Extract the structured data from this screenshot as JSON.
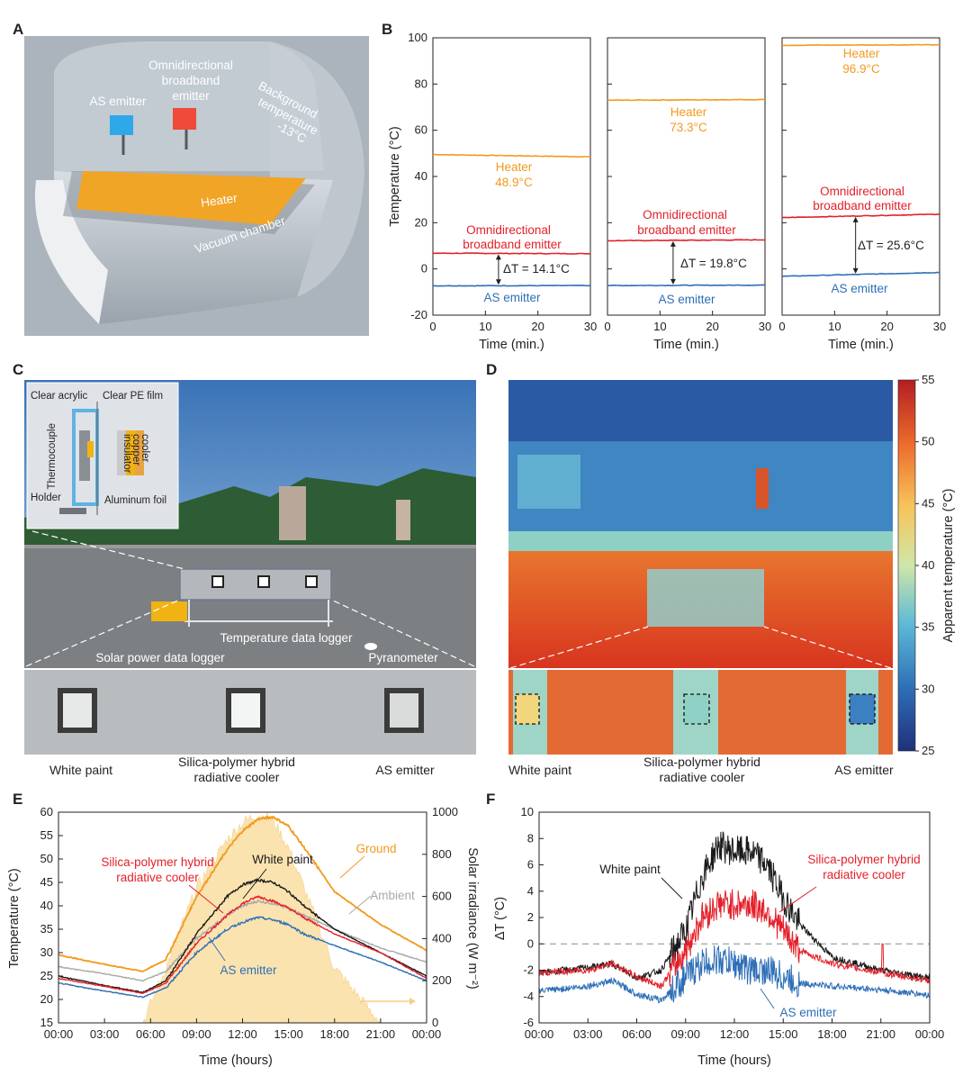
{
  "panel_letters": [
    "A",
    "B",
    "C",
    "D",
    "E",
    "F"
  ],
  "colors": {
    "heater": "#f29a1f",
    "omni": "#e4202a",
    "as": "#2e6fb7",
    "white_paint": "#1a1a1a",
    "ambient": "#a9a9a9",
    "ground": "#f29a1f",
    "irradiance": "#fbe3b0",
    "hybrid": "#e4202a"
  },
  "panel_a": {
    "labels": {
      "as_emitter": "AS emitter",
      "omni_1": "Omnidirectional",
      "omni_2": "broadband",
      "omni_3": "emitter",
      "bg_1": "Background",
      "bg_2": "temperature",
      "bg_3": "-13°C",
      "heater": "Heater",
      "chamber": "Vacuum chamber"
    }
  },
  "panel_b": {
    "ylabel": "Temperature (°C)",
    "xlabel": "Time (min.)",
    "xticks": [
      "0",
      "10",
      "20",
      "30"
    ],
    "yticks": [
      "-20",
      "0",
      "20",
      "40",
      "60",
      "80",
      "100"
    ],
    "annotations": [
      {
        "heater_1": "Heater",
        "heater_2": "48.9°C",
        "omni_1": "Omnidirectional",
        "omni_2": "broadband emitter",
        "dt": "ΔT = 14.1°C",
        "as": "AS emitter"
      },
      {
        "heater_1": "Heater",
        "heater_2": "73.3°C",
        "omni_1": "Omnidirectional",
        "omni_2": "broadband emitter",
        "dt": "ΔT = 19.8°C",
        "as": "AS emitter"
      },
      {
        "heater_1": "Heater",
        "heater_2": "96.9°C",
        "omni_1": "Omnidirectional",
        "omni_2": "broadband emitter",
        "dt": "ΔT = 25.6°C",
        "as": "AS emitter"
      }
    ]
  },
  "panel_c": {
    "inset": {
      "acrylic": "Clear acrylic",
      "pe": "Clear PE film",
      "thermo": "Thermocouple",
      "holder": "Holder",
      "foil": "Aluminum foil",
      "cooler": "cooler",
      "copper": "copper",
      "insulator": "insulator"
    },
    "labels": {
      "logger": "Temperature data logger",
      "solar": "Solar power data logger",
      "pyr": "Pyranometer"
    },
    "captions": {
      "white": "White paint",
      "hybrid_1": "Silica-polymer hybrid",
      "hybrid_2": "radiative cooler",
      "as": "AS emitter"
    }
  },
  "panel_d": {
    "colorbar_label": "Apparent temperature (°C)",
    "colorbar_ticks": [
      "25",
      "30",
      "35",
      "40",
      "45",
      "50",
      "55"
    ],
    "captions": {
      "white": "White paint",
      "hybrid_1": "Silica-polymer hybrid",
      "hybrid_2": "radiative cooler",
      "as": "AS emitter"
    }
  },
  "panel_e": {
    "ylabel": "Temperature (°C)",
    "y2label": "Solar irradiance (W m⁻²)",
    "xlabel": "Time (hours)",
    "xticks": [
      "00:00",
      "03:00",
      "06:00",
      "09:00",
      "12:00",
      "15:00",
      "18:00",
      "21:00",
      "00:00"
    ],
    "yticks": [
      "15",
      "20",
      "25",
      "30",
      "35",
      "40",
      "45",
      "50",
      "55",
      "60"
    ],
    "y2ticks": [
      "0",
      "200",
      "400",
      "600",
      "800",
      "1000"
    ],
    "labels": {
      "hybrid_1": "Silica-polymer hybrid",
      "hybrid_2": "radiative cooler",
      "white": "White paint",
      "ground": "Ground",
      "ambient": "Ambient",
      "as": "AS emitter"
    }
  },
  "panel_f": {
    "ylabel": "ΔT (°C)",
    "xlabel": "Time (hours)",
    "xticks": [
      "00:00",
      "03:00",
      "06:00",
      "09:00",
      "12:00",
      "15:00",
      "18:00",
      "21:00",
      "00:00"
    ],
    "yticks": [
      "-6",
      "-4",
      "-2",
      "0",
      "2",
      "4",
      "6",
      "8",
      "10"
    ],
    "labels": {
      "white": "White paint",
      "hybrid_1": "Silica-polymer hybrid",
      "hybrid_2": "radiative cooler",
      "as": "AS emitter"
    }
  },
  "chart_data": [
    {
      "id": "B1",
      "type": "line",
      "xlabel": "Time (min.)",
      "ylabel": "Temperature (°C)",
      "xlim": [
        0,
        30
      ],
      "ylim": [
        -20,
        100
      ],
      "series": [
        {
          "name": "Heater",
          "x": [
            0,
            30
          ],
          "y": [
            49.5,
            48.5
          ]
        },
        {
          "name": "Omnidirectional broadband emitter",
          "x": [
            0,
            30
          ],
          "y": [
            6.8,
            6.6
          ]
        },
        {
          "name": "AS emitter",
          "x": [
            0,
            30
          ],
          "y": [
            -7.3,
            -7.2
          ]
        }
      ]
    },
    {
      "id": "B2",
      "type": "line",
      "xlabel": "Time (min.)",
      "xlim": [
        0,
        30
      ],
      "ylim": [
        -20,
        100
      ],
      "series": [
        {
          "name": "Heater",
          "x": [
            0,
            30
          ],
          "y": [
            73.0,
            73.3
          ]
        },
        {
          "name": "Omnidirectional broadband emitter",
          "x": [
            0,
            30
          ],
          "y": [
            12.2,
            12.6
          ]
        },
        {
          "name": "AS emitter",
          "x": [
            0,
            30
          ],
          "y": [
            -7.2,
            -7.0
          ]
        }
      ]
    },
    {
      "id": "B3",
      "type": "line",
      "xlabel": "Time (min.)",
      "xlim": [
        0,
        30
      ],
      "ylim": [
        -20,
        100
      ],
      "series": [
        {
          "name": "Heater",
          "x": [
            0,
            30
          ],
          "y": [
            96.8,
            97.0
          ]
        },
        {
          "name": "Omnidirectional broadband emitter",
          "x": [
            0,
            30
          ],
          "y": [
            22.2,
            23.7
          ]
        },
        {
          "name": "AS emitter",
          "x": [
            0,
            30
          ],
          "y": [
            -3.2,
            -1.5
          ]
        }
      ]
    },
    {
      "id": "E",
      "type": "line",
      "xlabel": "Time (hours)",
      "ylabel": "Temperature (°C)",
      "y2label": "Solar irradiance (W m⁻²)",
      "xlim": [
        0,
        24
      ],
      "ylim": [
        15,
        60
      ],
      "y2lim": [
        0,
        1000
      ],
      "x": [
        0,
        3,
        5.5,
        7,
        9,
        11,
        12,
        13,
        14,
        15,
        16,
        18,
        21,
        24
      ],
      "series": [
        {
          "name": "Ground",
          "y": [
            29.5,
            27.5,
            26,
            28.5,
            42,
            52,
            56,
            58.5,
            59,
            57,
            52.5,
            43,
            36,
            30.5
          ]
        },
        {
          "name": "White paint",
          "y": [
            25,
            23,
            21.5,
            24,
            34,
            42,
            44.5,
            45.5,
            45,
            43,
            40,
            35,
            30,
            25
          ]
        },
        {
          "name": "Ambient",
          "y": [
            27,
            25.5,
            24,
            26,
            33,
            38,
            40,
            41,
            40.5,
            39.5,
            38,
            35,
            31,
            28
          ]
        },
        {
          "name": "Silica-polymer hybrid radiative cooler",
          "y": [
            24.5,
            22.8,
            21.3,
            23.5,
            32,
            38,
            40.5,
            42,
            41,
            39.5,
            37.5,
            34,
            30,
            24.5
          ]
        },
        {
          "name": "AS emitter",
          "y": [
            23.5,
            21.8,
            20.5,
            22.5,
            30,
            35,
            36.5,
            37.5,
            37,
            36,
            34,
            31.5,
            28,
            24
          ]
        },
        {
          "name": "Solar irradiance",
          "axis": "y2",
          "y": [
            0,
            0,
            0,
            260,
            640,
            870,
            950,
            990,
            960,
            830,
            640,
            260,
            0,
            0
          ]
        }
      ]
    },
    {
      "id": "F",
      "type": "line",
      "xlabel": "Time (hours)",
      "ylabel": "ΔT (°C)",
      "xlim": [
        0,
        24
      ],
      "ylim": [
        -6,
        10
      ],
      "x": [
        0,
        3,
        4.5,
        6,
        7.5,
        9,
        10,
        11,
        12,
        13,
        14,
        15,
        16,
        18,
        21,
        24
      ],
      "series": [
        {
          "name": "White paint",
          "y": [
            -2.2,
            -1.8,
            -1.5,
            -2.6,
            -2,
            1,
            5,
            7.5,
            7,
            7,
            6,
            3.5,
            1.5,
            -1,
            -2,
            -2.6
          ]
        },
        {
          "name": "Silica-polymer hybrid radiative cooler",
          "y": [
            -2.2,
            -2,
            -1.5,
            -2.5,
            -3.2,
            -0.5,
            2,
            3,
            3,
            3,
            2.5,
            1,
            -0.5,
            -1.5,
            -2.2,
            -2.8
          ]
        },
        {
          "name": "AS emitter",
          "y": [
            -3.6,
            -3.2,
            -2.8,
            -3.8,
            -4.3,
            -2.5,
            -1.5,
            -1.2,
            -1.5,
            -2,
            -2,
            -2.5,
            -3,
            -3.2,
            -3.5,
            -3.9
          ]
        }
      ]
    }
  ]
}
